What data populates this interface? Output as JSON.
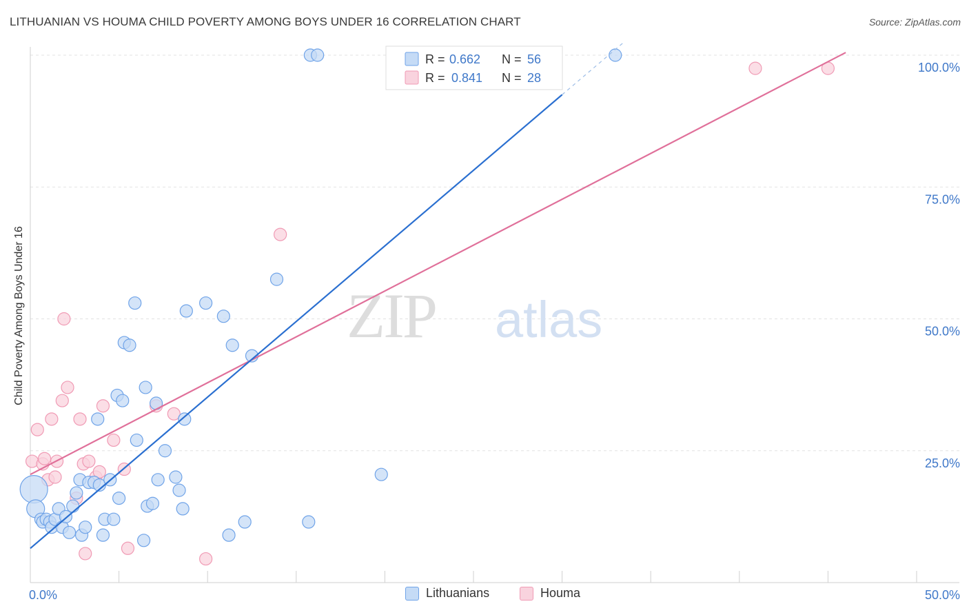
{
  "header": {
    "title": "LITHUANIAN VS HOUMA CHILD POVERTY AMONG BOYS UNDER 16 CORRELATION CHART",
    "source": "Source: ZipAtlas.com"
  },
  "watermark": {
    "zip": "ZIP",
    "atlas": "atlas"
  },
  "colors": {
    "lithuanians": "#6fa3e8",
    "lithuanians_fill": "#c5dbf6",
    "lithuanians_line": "#2a6fd0",
    "houma": "#f09ab4",
    "houma_fill": "#f9d3de",
    "houma_line": "#e0709a",
    "tick_label": "#3f78c9"
  },
  "legend": {
    "rows": [
      {
        "r_label": "R =",
        "r_value": "0.662",
        "n_label": "N =",
        "n_value": "56"
      },
      {
        "r_label": "R =",
        "r_value": "0.841",
        "n_label": "N =",
        "n_value": "28"
      }
    ],
    "series": [
      "Lithuanians",
      "Houma"
    ]
  },
  "chart_data": {
    "type": "scatter",
    "title": "LITHUANIAN VS HOUMA CHILD POVERTY AMONG BOYS UNDER 16 CORRELATION CHART",
    "xlabel": "",
    "ylabel": "Child Poverty Among Boys Under 16",
    "xlim": [
      0,
      50
    ],
    "ylim": [
      0,
      100
    ],
    "x_tick_labels": [
      "0.0%",
      "50.0%"
    ],
    "y_tick_labels": [
      "25.0%",
      "50.0%",
      "75.0%",
      "100.0%"
    ],
    "y_ticks": [
      25,
      50,
      75,
      100
    ],
    "grid": true,
    "legend_position": "top-center",
    "series": [
      {
        "name": "Lithuanians",
        "r": 0.662,
        "n": 56,
        "trend": {
          "x": [
            0,
            30
          ],
          "y": [
            6.5,
            92.5
          ]
        },
        "trend_extension": {
          "x": [
            30,
            33.5
          ],
          "y": [
            92.5,
            102.5
          ]
        },
        "points": [
          [
            0.2,
            17.7,
            "L"
          ],
          [
            0.3,
            14,
            "M"
          ],
          [
            0.6,
            12
          ],
          [
            0.7,
            11.5
          ],
          [
            0.9,
            12
          ],
          [
            1.1,
            11.5
          ],
          [
            1.2,
            10.5
          ],
          [
            1.4,
            12
          ],
          [
            1.6,
            14
          ],
          [
            1.8,
            10.5
          ],
          [
            2.0,
            12.5
          ],
          [
            2.2,
            9.5
          ],
          [
            2.4,
            14.5
          ],
          [
            2.6,
            17
          ],
          [
            2.8,
            19.5
          ],
          [
            2.9,
            9
          ],
          [
            3.1,
            10.5
          ],
          [
            3.3,
            19
          ],
          [
            3.6,
            19
          ],
          [
            3.8,
            31
          ],
          [
            3.9,
            18.5
          ],
          [
            4.1,
            9
          ],
          [
            4.2,
            12
          ],
          [
            4.5,
            19.5
          ],
          [
            4.7,
            12
          ],
          [
            4.9,
            35.5
          ],
          [
            5.0,
            16
          ],
          [
            5.2,
            34.5
          ],
          [
            5.3,
            45.5
          ],
          [
            5.6,
            45
          ],
          [
            5.9,
            53
          ],
          [
            6.0,
            27
          ],
          [
            6.4,
            8
          ],
          [
            6.5,
            37
          ],
          [
            6.6,
            14.5
          ],
          [
            6.9,
            15
          ],
          [
            7.1,
            34
          ],
          [
            7.2,
            19.5
          ],
          [
            7.6,
            25
          ],
          [
            8.2,
            20
          ],
          [
            8.4,
            17.5
          ],
          [
            8.6,
            14
          ],
          [
            8.7,
            31
          ],
          [
            8.8,
            51.5
          ],
          [
            9.9,
            53
          ],
          [
            10.9,
            50.5
          ],
          [
            11.2,
            9
          ],
          [
            11.4,
            45
          ],
          [
            12.1,
            11.5
          ],
          [
            12.5,
            43
          ],
          [
            13.9,
            57.5
          ],
          [
            15.7,
            11.5
          ],
          [
            15.8,
            100
          ],
          [
            16.2,
            100
          ],
          [
            19.8,
            20.5
          ],
          [
            33.0,
            100
          ]
        ]
      },
      {
        "name": "Houma",
        "r": 0.841,
        "n": 28,
        "trend": {
          "x": [
            0,
            46
          ],
          "y": [
            20.5,
            100.5
          ]
        },
        "points": [
          [
            0.1,
            23
          ],
          [
            0.4,
            29
          ],
          [
            0.7,
            22.5
          ],
          [
            0.8,
            23.5
          ],
          [
            1.0,
            19.5
          ],
          [
            1.2,
            31
          ],
          [
            1.4,
            20
          ],
          [
            1.5,
            23
          ],
          [
            1.8,
            34.5
          ],
          [
            1.9,
            50
          ],
          [
            2.1,
            37
          ],
          [
            2.6,
            16
          ],
          [
            2.8,
            31
          ],
          [
            3.0,
            22.5
          ],
          [
            3.1,
            5.5
          ],
          [
            3.3,
            23
          ],
          [
            3.7,
            20
          ],
          [
            3.9,
            21
          ],
          [
            4.1,
            33.5
          ],
          [
            4.7,
            27
          ],
          [
            5.3,
            21.5
          ],
          [
            5.5,
            6.5
          ],
          [
            7.1,
            33.5
          ],
          [
            8.1,
            32
          ],
          [
            9.9,
            4.5
          ],
          [
            14.1,
            66
          ],
          [
            40.9,
            97.5
          ],
          [
            45.0,
            97.5
          ]
        ]
      }
    ]
  }
}
